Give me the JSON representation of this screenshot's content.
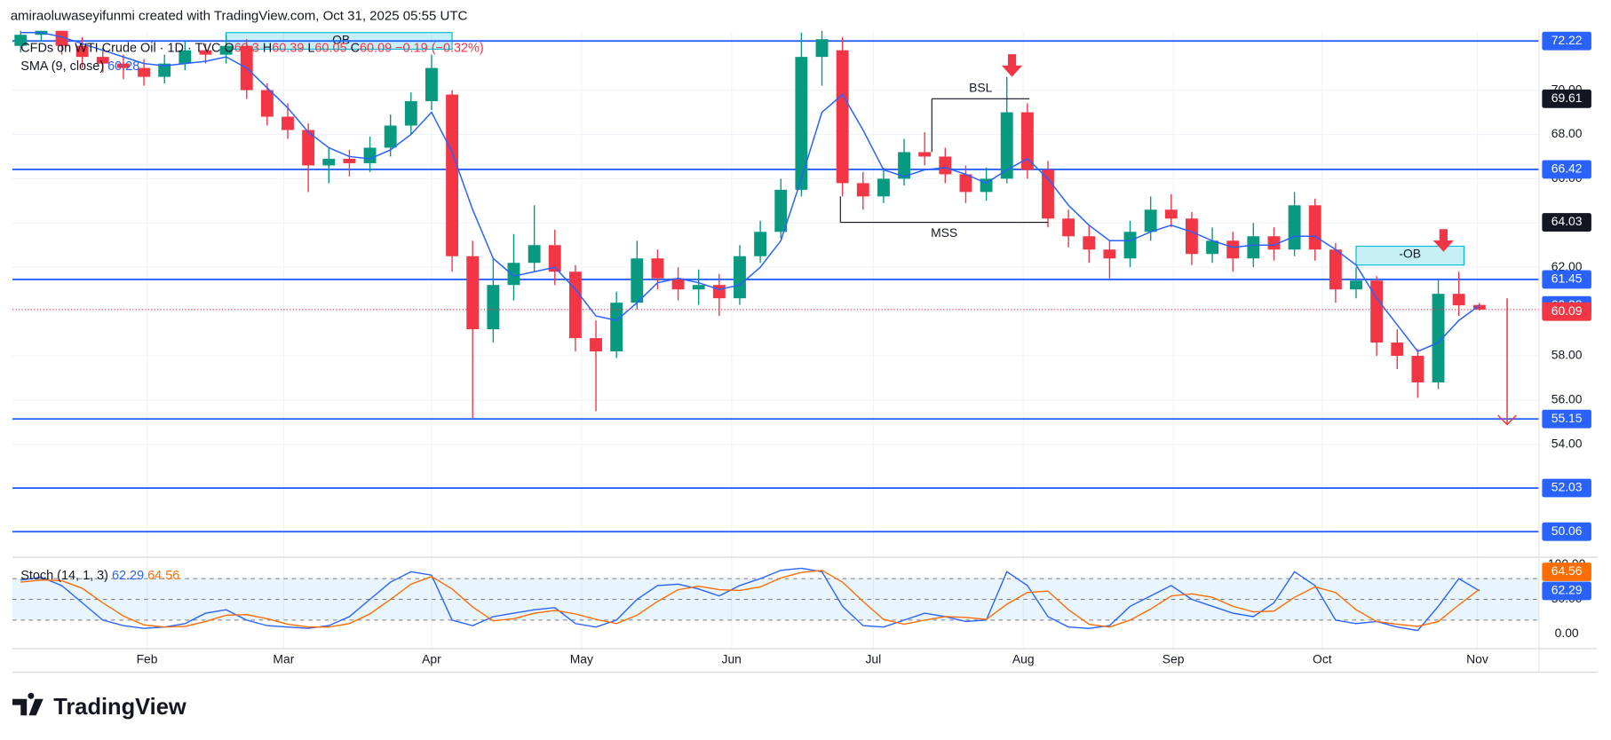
{
  "attribution": "amiraoluwaseyifunmi created with TradingView.com, Oct 31, 2025 05:55 UTC",
  "brand": "TradingView",
  "chart_data": [
    {
      "type": "candlestick",
      "symbol": "CFDs on WTI Crude Oil · 1D · TVC",
      "ohlc_prefixes": [
        "O",
        "H",
        "L",
        "C"
      ],
      "change": "−0.19 (−0.32%)",
      "open": [
        72.0,
        72.5,
        72.8,
        72.0,
        71.5,
        71.2,
        71.0,
        70.6,
        71.2,
        71.8,
        71.6,
        72.0,
        70.0,
        68.8,
        68.2,
        66.6,
        66.9,
        66.7,
        67.4,
        68.4,
        69.5,
        69.8,
        62.5,
        59.2,
        61.2,
        62.2,
        63.0,
        61.8,
        58.8,
        58.2,
        60.4,
        62.4,
        61.5,
        61.0,
        61.2,
        60.6,
        62.5,
        63.6,
        65.5,
        71.5,
        71.8,
        65.8,
        65.2,
        66.0,
        67.2,
        67.0,
        66.2,
        65.4,
        66.0,
        69.0,
        66.4,
        64.2,
        63.4,
        62.8,
        62.4,
        63.6,
        64.6,
        64.2,
        62.6,
        63.2,
        62.4,
        63.4,
        62.8,
        64.8,
        62.8,
        61.0,
        61.4,
        58.6,
        58.0,
        56.8,
        60.8,
        60.3
      ],
      "high": [
        72.9,
        73.2,
        73.1,
        72.4,
        71.9,
        71.6,
        71.4,
        71.6,
        72.2,
        72.1,
        72.5,
        72.3,
        70.3,
        69.4,
        68.5,
        67.4,
        67.3,
        67.9,
        68.9,
        69.9,
        71.6,
        70.0,
        63.2,
        62.4,
        63.5,
        64.8,
        63.7,
        62.1,
        59.6,
        60.9,
        63.2,
        62.8,
        62.0,
        61.9,
        61.7,
        63.0,
        64.1,
        66.0,
        72.6,
        73.5,
        72.4,
        66.3,
        66.5,
        67.8,
        68.1,
        67.4,
        66.6,
        66.5,
        70.6,
        69.4,
        66.8,
        64.6,
        63.9,
        63.2,
        64.1,
        65.2,
        65.3,
        64.5,
        63.8,
        63.6,
        64.0,
        63.8,
        65.4,
        65.1,
        63.1,
        62.0,
        61.6,
        59.2,
        58.3,
        61.5,
        61.8,
        60.39
      ],
      "low": [
        71.7,
        72.2,
        71.6,
        71.0,
        70.8,
        70.5,
        70.2,
        70.3,
        70.9,
        71.2,
        71.2,
        69.6,
        68.4,
        67.8,
        65.4,
        65.8,
        66.1,
        66.3,
        67.0,
        68.0,
        69.1,
        61.8,
        55.2,
        58.6,
        60.5,
        61.8,
        61.2,
        58.2,
        55.5,
        57.9,
        60.1,
        61.0,
        60.5,
        60.3,
        59.8,
        60.3,
        62.2,
        63.3,
        65.2,
        70.2,
        65.2,
        64.6,
        64.9,
        65.7,
        66.6,
        65.8,
        64.9,
        65.0,
        65.8,
        66.0,
        63.8,
        62.9,
        62.2,
        61.5,
        62.0,
        63.2,
        63.8,
        62.1,
        62.2,
        61.8,
        62.0,
        62.3,
        62.5,
        62.3,
        60.4,
        60.6,
        58.0,
        57.4,
        56.1,
        56.5,
        59.8,
        60.05
      ],
      "close": [
        72.5,
        72.8,
        72.0,
        71.5,
        71.2,
        71.0,
        70.6,
        71.2,
        71.8,
        71.6,
        72.0,
        70.0,
        68.8,
        68.2,
        66.6,
        66.9,
        66.7,
        67.4,
        68.4,
        69.5,
        71.0,
        62.5,
        59.2,
        61.2,
        62.2,
        63.0,
        61.8,
        58.8,
        58.2,
        60.4,
        62.4,
        61.5,
        61.0,
        61.2,
        60.6,
        62.5,
        63.6,
        65.5,
        71.5,
        72.3,
        65.8,
        65.2,
        66.0,
        67.2,
        67.0,
        66.2,
        65.4,
        66.0,
        69.0,
        66.4,
        64.2,
        63.4,
        62.8,
        62.4,
        63.6,
        64.6,
        64.2,
        62.6,
        63.2,
        62.4,
        63.4,
        62.8,
        64.8,
        62.8,
        61.0,
        61.4,
        58.6,
        58.0,
        56.8,
        60.8,
        60.28,
        60.09
      ],
      "up_color": "#089981",
      "down_color": "#f23645",
      "xlim": [
        -0.4,
        73.9
      ],
      "xticks": [
        {
          "value": 6.15,
          "label": "Feb"
        },
        {
          "value": 12.8,
          "label": "Mar"
        },
        {
          "value": 20,
          "label": "Apr"
        },
        {
          "value": 27.3,
          "label": "May"
        },
        {
          "value": 34.6,
          "label": "Jun"
        },
        {
          "value": 41.5,
          "label": "Jul"
        },
        {
          "value": 48.8,
          "label": "Aug"
        },
        {
          "value": 56.1,
          "label": "Sep"
        },
        {
          "value": 63.35,
          "label": "Oct"
        },
        {
          "value": 70.9,
          "label": "Nov"
        }
      ],
      "ylim": [
        49.04,
        72.68
      ],
      "yticks": [
        {
          "value": 54,
          "label": "54.00"
        },
        {
          "value": 56,
          "label": "56.00"
        },
        {
          "value": 58,
          "label": "58.00"
        },
        {
          "value": 60,
          "label": "60.00"
        },
        {
          "value": 62,
          "label": "62.00"
        },
        {
          "value": 64,
          "label": "64.00"
        },
        {
          "value": 66,
          "label": "66.00"
        },
        {
          "value": 68,
          "label": "68.00"
        },
        {
          "value": 70,
          "label": "70.00"
        }
      ],
      "grid": true,
      "sma": {
        "name": "SMA (9, close)",
        "color": "#2962ff",
        "values": [
          72.6,
          72.6,
          72.4,
          72.1,
          71.8,
          71.5,
          71.2,
          71.1,
          71.2,
          71.3,
          71.5,
          71.0,
          70.1,
          69.2,
          68.1,
          67.4,
          67.0,
          66.9,
          67.3,
          68.0,
          69.0,
          67.2,
          64.6,
          62.4,
          61.6,
          61.8,
          62.0,
          61.0,
          59.8,
          59.6,
          60.4,
          61.3,
          61.5,
          61.3,
          61.0,
          61.2,
          62.0,
          63.2,
          66.0,
          69.0,
          69.8,
          68.2,
          66.4,
          66.1,
          66.4,
          66.5,
          66.2,
          65.8,
          66.4,
          66.9,
          66.0,
          64.8,
          63.9,
          63.2,
          63.2,
          63.6,
          63.9,
          63.6,
          63.2,
          62.9,
          63.0,
          63.0,
          63.4,
          63.4,
          62.8,
          62.1,
          60.6,
          59.4,
          58.2,
          58.6,
          59.6,
          60.28
        ]
      },
      "levels": {
        "color": "#2962ff",
        "values": [
          72.22,
          66.42,
          61.45,
          55.15,
          52.03,
          50.06
        ]
      },
      "annotations": {
        "ob": [
          {
            "label": "-OB",
            "x0": 10.0,
            "x1": 21.0,
            "y0": 71.85,
            "y1": 72.6
          },
          {
            "label": "-OB",
            "x0": 65.0,
            "x1": 70.25,
            "y0": 62.1,
            "y1": 62.95
          }
        ],
        "bsl": {
          "label": "BSL",
          "value": 69.61,
          "x0": 44.35,
          "x1": 49.1,
          "end": 67.2
        },
        "mss": {
          "label": "MSS",
          "value": 64.03,
          "x0": 39.9,
          "x1": 50.0,
          "end": 65.2
        },
        "arrows": [
          {
            "x": 48.25,
            "y": 70.6
          },
          {
            "x": 69.25,
            "y": 62.7
          }
        ],
        "projection": {
          "x": 72.35,
          "from": 60.6,
          "to": 54.9
        }
      }
    },
    {
      "type": "line",
      "title": "Stoch (14, 1, 3)",
      "ylim": [
        -21.3,
        106.4
      ],
      "yticks": [
        {
          "value": 0,
          "label": "0.00"
        },
        {
          "value": 50,
          "label": "50.00"
        },
        {
          "value": 100,
          "label": "100.00"
        }
      ],
      "levels": [
        20,
        50,
        80
      ],
      "band_color": "#2196f3",
      "series": [
        {
          "color": "#2962ff",
          "values": [
            78,
            82,
            70,
            45,
            20,
            12,
            8,
            10,
            15,
            30,
            35,
            20,
            12,
            10,
            8,
            12,
            25,
            50,
            75,
            90,
            85,
            20,
            12,
            25,
            30,
            35,
            38,
            15,
            10,
            20,
            50,
            70,
            72,
            65,
            55,
            70,
            80,
            92,
            95,
            90,
            40,
            12,
            10,
            20,
            30,
            25,
            18,
            20,
            90,
            70,
            25,
            10,
            8,
            12,
            40,
            55,
            70,
            50,
            40,
            30,
            25,
            45,
            90,
            70,
            20,
            15,
            18,
            10,
            5,
            40,
            80,
            62.29
          ]
        },
        {
          "color": "#ff6d00",
          "values": [
            75,
            78,
            77,
            66,
            45,
            26,
            13,
            10,
            11,
            18,
            27,
            28,
            22,
            14,
            10,
            10,
            15,
            29,
            50,
            72,
            83,
            65,
            39,
            19,
            22,
            30,
            34,
            29,
            21,
            15,
            27,
            47,
            64,
            69,
            64,
            63,
            68,
            81,
            89,
            92,
            75,
            47,
            21,
            14,
            20,
            25,
            24,
            21,
            43,
            60,
            62,
            35,
            14,
            10,
            20,
            36,
            55,
            58,
            53,
            40,
            32,
            33,
            53,
            68,
            60,
            35,
            18,
            14,
            11,
            18,
            42,
            64.56
          ]
        }
      ]
    }
  ]
}
